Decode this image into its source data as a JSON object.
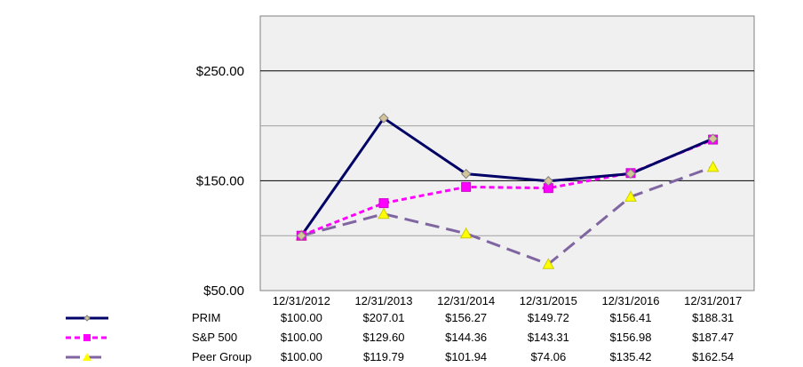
{
  "chart_data": {
    "type": "line",
    "title": "",
    "xlabel": "",
    "ylabel": "",
    "categories": [
      "12/31/2012",
      "12/31/2013",
      "12/31/2014",
      "12/31/2015",
      "12/31/2016",
      "12/31/2017"
    ],
    "y_ticks": [
      "$50.00",
      "$150.00",
      "$250.00"
    ],
    "ylim": [
      50,
      300
    ],
    "grid": true,
    "legend": "table-below",
    "series": [
      {
        "name": "PRIM",
        "values": [
          100.0,
          207.01,
          156.27,
          149.72,
          156.41,
          188.31
        ],
        "labels": [
          "$100.00",
          "$207.01",
          "$156.27",
          "$149.72",
          "$156.41",
          "$188.31"
        ],
        "color": "#000066",
        "marker": "diamond",
        "marker_color": "#d4c49a",
        "dash": "solid"
      },
      {
        "name": "S&P 500",
        "values": [
          100.0,
          129.6,
          144.36,
          143.31,
          156.98,
          187.47
        ],
        "labels": [
          "$100.00",
          "$129.60",
          "$144.36",
          "$143.31",
          "$156.98",
          "$187.47"
        ],
        "color": "#ff00ff",
        "marker": "square",
        "marker_color": "#ff00ff",
        "dash": "short"
      },
      {
        "name": "Peer Group",
        "values": [
          100.0,
          119.79,
          101.94,
          74.06,
          135.42,
          162.54
        ],
        "labels": [
          "$100.00",
          "$119.79",
          "$101.94",
          "$74.06",
          "$135.42",
          "$162.54"
        ],
        "color": "#8066a0",
        "marker": "triangle",
        "marker_color": "#ffff00",
        "dash": "long"
      }
    ]
  },
  "colors": {
    "plot_background": "#f0f0f0",
    "gridline": "#000000",
    "axis": "#808080"
  }
}
